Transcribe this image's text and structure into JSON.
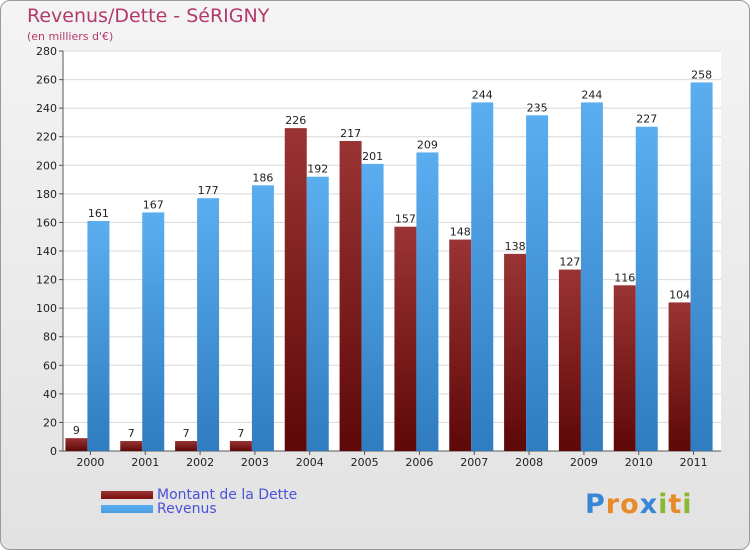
{
  "chart_data": {
    "type": "bar",
    "title": "Revenus/Dette - SéRIGNY",
    "subtitle": "(en milliers d'€)",
    "categories": [
      "2000",
      "2001",
      "2002",
      "2003",
      "2004",
      "2005",
      "2006",
      "2007",
      "2008",
      "2009",
      "2010",
      "2011"
    ],
    "series": [
      {
        "name": "Montant de la Dette",
        "color": "#7a1010",
        "values": [
          9,
          7,
          7,
          7,
          226,
          217,
          157,
          148,
          138,
          127,
          116,
          104
        ]
      },
      {
        "name": "Revenus",
        "color": "#4a9ee0",
        "values": [
          161,
          167,
          177,
          186,
          192,
          201,
          209,
          244,
          235,
          244,
          227,
          258
        ]
      }
    ],
    "ylim": [
      0,
      280
    ],
    "yticks": [
      0,
      20,
      40,
      60,
      80,
      100,
      120,
      140,
      160,
      180,
      200,
      220,
      240,
      260,
      280
    ],
    "grid": true,
    "legend": "bottom-left"
  },
  "logo": {
    "letters": [
      {
        "ch": "P",
        "color": "#3a86d6"
      },
      {
        "ch": "r",
        "color": "#e88a2a"
      },
      {
        "ch": "o",
        "color": "#e88a2a"
      },
      {
        "ch": "x",
        "color": "#3a86d6"
      },
      {
        "ch": "i",
        "color": "#8ab832"
      },
      {
        "ch": "t",
        "color": "#e88a2a"
      },
      {
        "ch": "i",
        "color": "#8ab832"
      }
    ]
  }
}
